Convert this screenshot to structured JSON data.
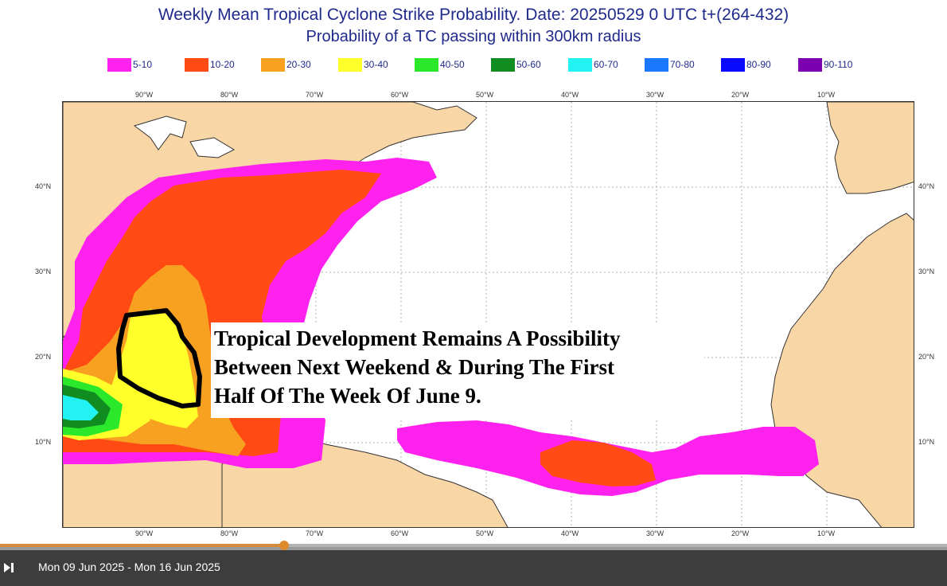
{
  "title_line1": "Weekly Mean Tropical Cyclone Strike Probability. Date: 20250529  0 UTC    t+(264-432)",
  "title_line2": "Probability of a TC passing within  300km radius",
  "legend": [
    {
      "label": "5-10",
      "color": "#ff22ee"
    },
    {
      "label": "10-20",
      "color": "#ff4a14"
    },
    {
      "label": "20-30",
      "color": "#f8a020"
    },
    {
      "label": "30-40",
      "color": "#ffff2a"
    },
    {
      "label": "40-50",
      "color": "#2be82b"
    },
    {
      "label": "50-60",
      "color": "#108c20"
    },
    {
      "label": "60-70",
      "color": "#22f2f2"
    },
    {
      "label": "70-80",
      "color": "#1a78ff"
    },
    {
      "label": "80-90",
      "color": "#0a0aff"
    },
    {
      "label": "90-110",
      "color": "#7a00b0"
    }
  ],
  "lon_labels": [
    "90°W",
    "80°W",
    "70°W",
    "60°W",
    "50°W",
    "40°W",
    "30°W",
    "20°W",
    "10°W"
  ],
  "lat_labels": [
    "40°N",
    "30°N",
    "20°N",
    "10°N"
  ],
  "annotation": {
    "line1": "Tropical Development Remains A Possibility",
    "line2": "Between Next Weekend & During The First",
    "line3": "Half Of The Week Of June 9."
  },
  "player": {
    "date_range": "Mon 09 Jun 2025 - Mon 16 Jun 2025",
    "progress_fraction": 0.3
  },
  "colors": {
    "land": "#f9d6a6",
    "ocean": "#ffffff",
    "title_text": "#1f2a8c",
    "control_bar": "#3d3d3d"
  }
}
